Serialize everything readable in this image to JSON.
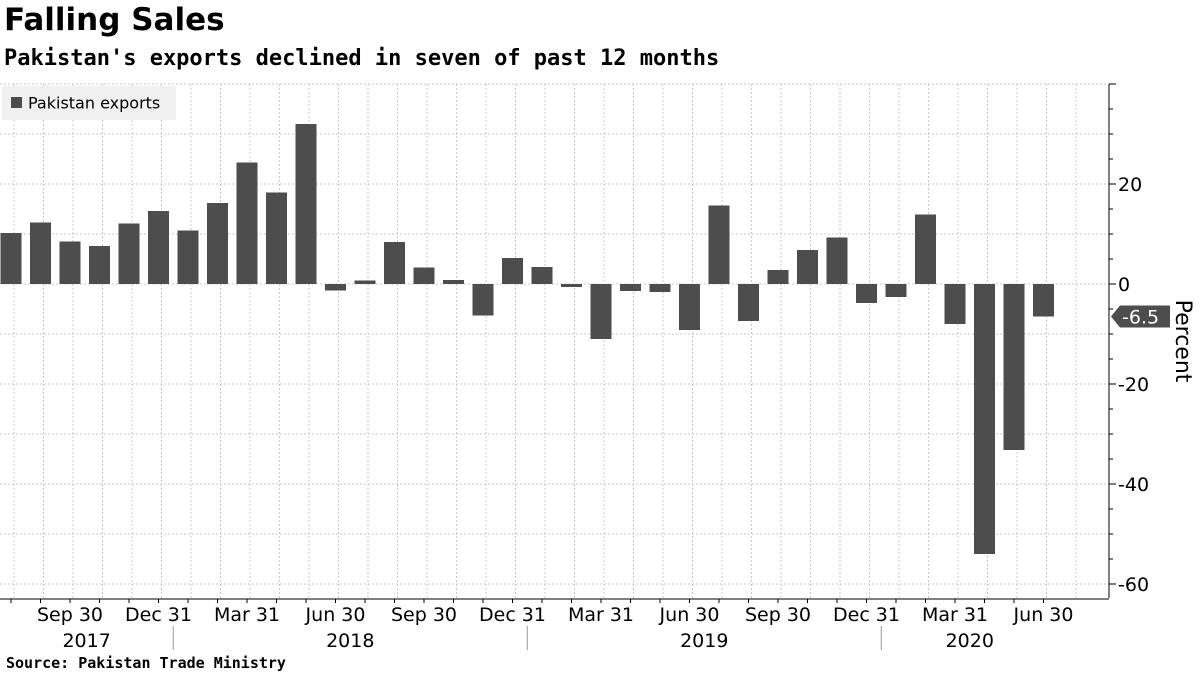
{
  "title": "Falling Sales",
  "subtitle": "Pakistan's exports declined in seven of past 12 months",
  "source": "Source: Pakistan Trade Ministry",
  "colors": {
    "bar": "#4d4d4d",
    "grid": "#c8c8c8",
    "callout": "#4d4d4d"
  },
  "chart_data": {
    "type": "bar",
    "ylabel": "Percent",
    "ylim": [
      -60,
      40
    ],
    "yticks": [
      20,
      0,
      -20,
      -40,
      -60
    ],
    "grid": true,
    "legend_position": "top-left",
    "series": [
      {
        "name": "Pakistan exports",
        "values": [
          10.2,
          12.3,
          8.5,
          7.6,
          12.1,
          14.6,
          10.7,
          16.2,
          24.3,
          18.3,
          32.0,
          -1.3,
          0.7,
          8.4,
          3.3,
          0.8,
          -6.3,
          5.2,
          3.4,
          -0.6,
          -11.0,
          -1.4,
          -1.6,
          -9.2,
          15.7,
          -7.4,
          2.8,
          6.8,
          9.3,
          -3.8,
          -2.6,
          13.9,
          -8.0,
          -54.0,
          -33.2,
          -6.5
        ]
      }
    ],
    "categories": [
      "Jul 2017",
      "Aug 2017",
      "Sep 2017",
      "Oct 2017",
      "Nov 2017",
      "Dec 2017",
      "Jan 2018",
      "Feb 2018",
      "Mar 2018",
      "Apr 2018",
      "May 2018",
      "Jun 2018",
      "Jul 2018",
      "Aug 2018",
      "Sep 2018",
      "Oct 2018",
      "Nov 2018",
      "Dec 2018",
      "Jan 2019",
      "Feb 2019",
      "Mar 2019",
      "Apr 2019",
      "May 2019",
      "Jun 2019",
      "Jul 2019",
      "Aug 2019",
      "Sep 2019",
      "Oct 2019",
      "Nov 2019",
      "Dec 2019",
      "Jan 2020",
      "Feb 2020",
      "Mar 2020",
      "Apr 2020",
      "May 2020",
      "Jun 2020"
    ],
    "xtick_labels": [
      {
        "label": "Sep 30",
        "index": 2
      },
      {
        "label": "Dec 31",
        "index": 5
      },
      {
        "label": "Mar 31",
        "index": 8
      },
      {
        "label": "Jun 30",
        "index": 11
      },
      {
        "label": "Sep 30",
        "index": 14
      },
      {
        "label": "Dec 31",
        "index": 17
      },
      {
        "label": "Mar 31",
        "index": 20
      },
      {
        "label": "Jun 30",
        "index": 23
      },
      {
        "label": "Sep 30",
        "index": 26
      },
      {
        "label": "Dec 31",
        "index": 29
      },
      {
        "label": "Mar 31",
        "index": 32
      },
      {
        "label": "Jun 30",
        "index": 35
      }
    ],
    "year_labels": [
      {
        "label": "2017",
        "start": 0,
        "end": 5
      },
      {
        "label": "2018",
        "start": 6,
        "end": 17
      },
      {
        "label": "2019",
        "start": 18,
        "end": 29
      },
      {
        "label": "2020",
        "start": 30,
        "end": 35
      }
    ],
    "last_value_label": "-6.5"
  }
}
